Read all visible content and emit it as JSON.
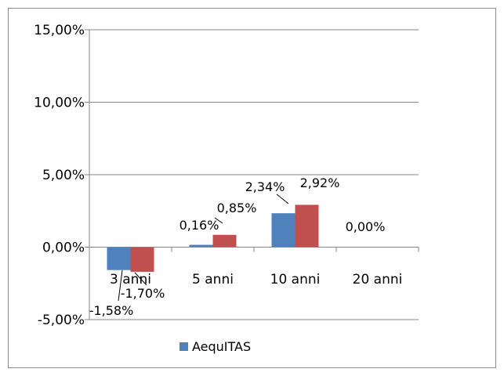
{
  "chart_data": {
    "type": "bar",
    "categories": [
      "3 anni",
      "5 anni",
      "10 anni",
      "20 anni"
    ],
    "series": [
      {
        "name": "AequITAS",
        "color": "#4f81bd",
        "values": [
          -1.58,
          0.16,
          2.34,
          null
        ],
        "labels": [
          "-1,58%",
          "0,16%",
          "2,34%",
          "0,00%"
        ]
      },
      {
        "name": "",
        "color": "#c0504d",
        "values": [
          -1.7,
          0.85,
          2.92,
          null
        ],
        "labels": [
          "-1,70%",
          "0,85%",
          "2,92%",
          ""
        ]
      }
    ],
    "ylim": [
      -5,
      15
    ],
    "yticks": [
      15,
      10,
      5,
      0,
      -5
    ],
    "ytick_labels": [
      "15,00%",
      "10,00%",
      "5,00%",
      "0,00%",
      "-5,00%"
    ],
    "grid": true,
    "legend": "bottom",
    "title": "",
    "xlabel": "",
    "ylabel": ""
  }
}
